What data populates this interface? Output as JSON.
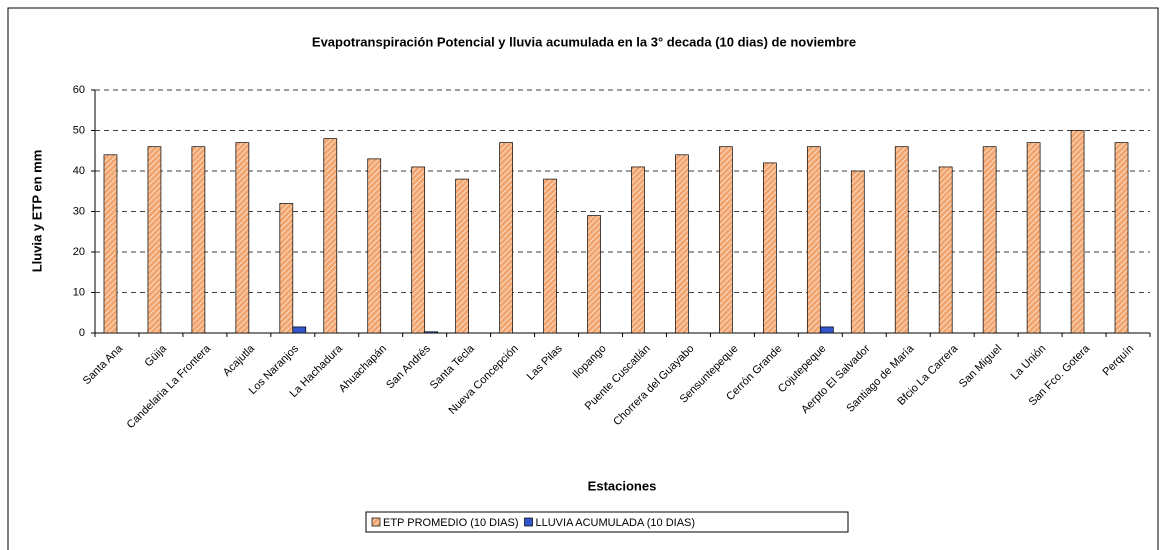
{
  "chart_data": {
    "type": "bar",
    "title": "Evapotranspiración Potencial y lluvia acumulada en la 3° decada (10 dias) de noviembre",
    "x_label": "Estaciones",
    "y_label": "Lluvia y ETP en mm",
    "categories": [
      "Santa Ana",
      "Güija",
      "Candelaria  La Frontera",
      "Acajutla",
      "Los Naranjos",
      "La Hachadura",
      "Ahuachapán",
      "San Andrés",
      "Santa Tecla",
      "Nueva Concepción",
      "Las Pilas",
      "Ilopango",
      "Puente Cuscatlán",
      "Chorrera del Guayabo",
      "Sensuntepeque",
      "Cerrón Grande",
      "Cojutepeque",
      "Aerpto El Salvador",
      "Santiago de María",
      "Bfcio La Carrera",
      "San Miguel",
      "La Unión",
      "San Fco. Gotera",
      "Perquín"
    ],
    "series": [
      {
        "name": "ETP PROMEDIO (10 DIAS)",
        "color": "#f2a56e",
        "values": [
          44,
          46,
          46,
          47,
          32,
          48,
          43,
          41,
          38,
          47,
          38,
          29,
          41,
          44,
          46,
          42,
          46,
          40,
          46,
          41,
          46,
          47,
          50,
          47
        ]
      },
      {
        "name": "LLUVIA ACUMULADA (10 DIAS)",
        "color": "#3355cc",
        "values": [
          0,
          0,
          0,
          0,
          1.5,
          0,
          0,
          0.3,
          0,
          0,
          0,
          0,
          0,
          0,
          0,
          0,
          1.5,
          0,
          0,
          0,
          0,
          0,
          0,
          0
        ]
      }
    ],
    "ylim": [
      0,
      60
    ],
    "yticks": [
      0,
      10,
      20,
      30,
      40,
      50,
      60
    ],
    "grid": true,
    "legend": "bottom"
  }
}
